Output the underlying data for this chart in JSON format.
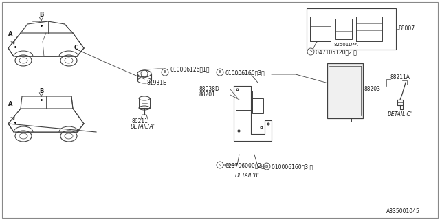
{
  "bg_color": "#ffffff",
  "line_color": "#404040",
  "text_color": "#1a1a1a",
  "diagram_number": "A835001045",
  "border": [
    3,
    3,
    637,
    317
  ],
  "parts": {
    "part_81931E": "81931E",
    "part_86211": "86211",
    "part_88007": "88007",
    "part_88203": "88203",
    "part_88211A": "88211A",
    "part_88038D": "88038D",
    "part_88201": "88201",
    "part_82501DA": "82501D*A",
    "bolt_B_010006126": "Ⓑ 010006126（1）",
    "bolt_B_010006160_3a": "Ⓑ 010006160（3）",
    "bolt_B_010006160_3b": "Ⓑ 010006160（3 ）",
    "bolt_N_02370600": "Ⓝ 023706000（2）",
    "bolt_S_047105120": "Ⓢ 047105120（2 ）"
  }
}
